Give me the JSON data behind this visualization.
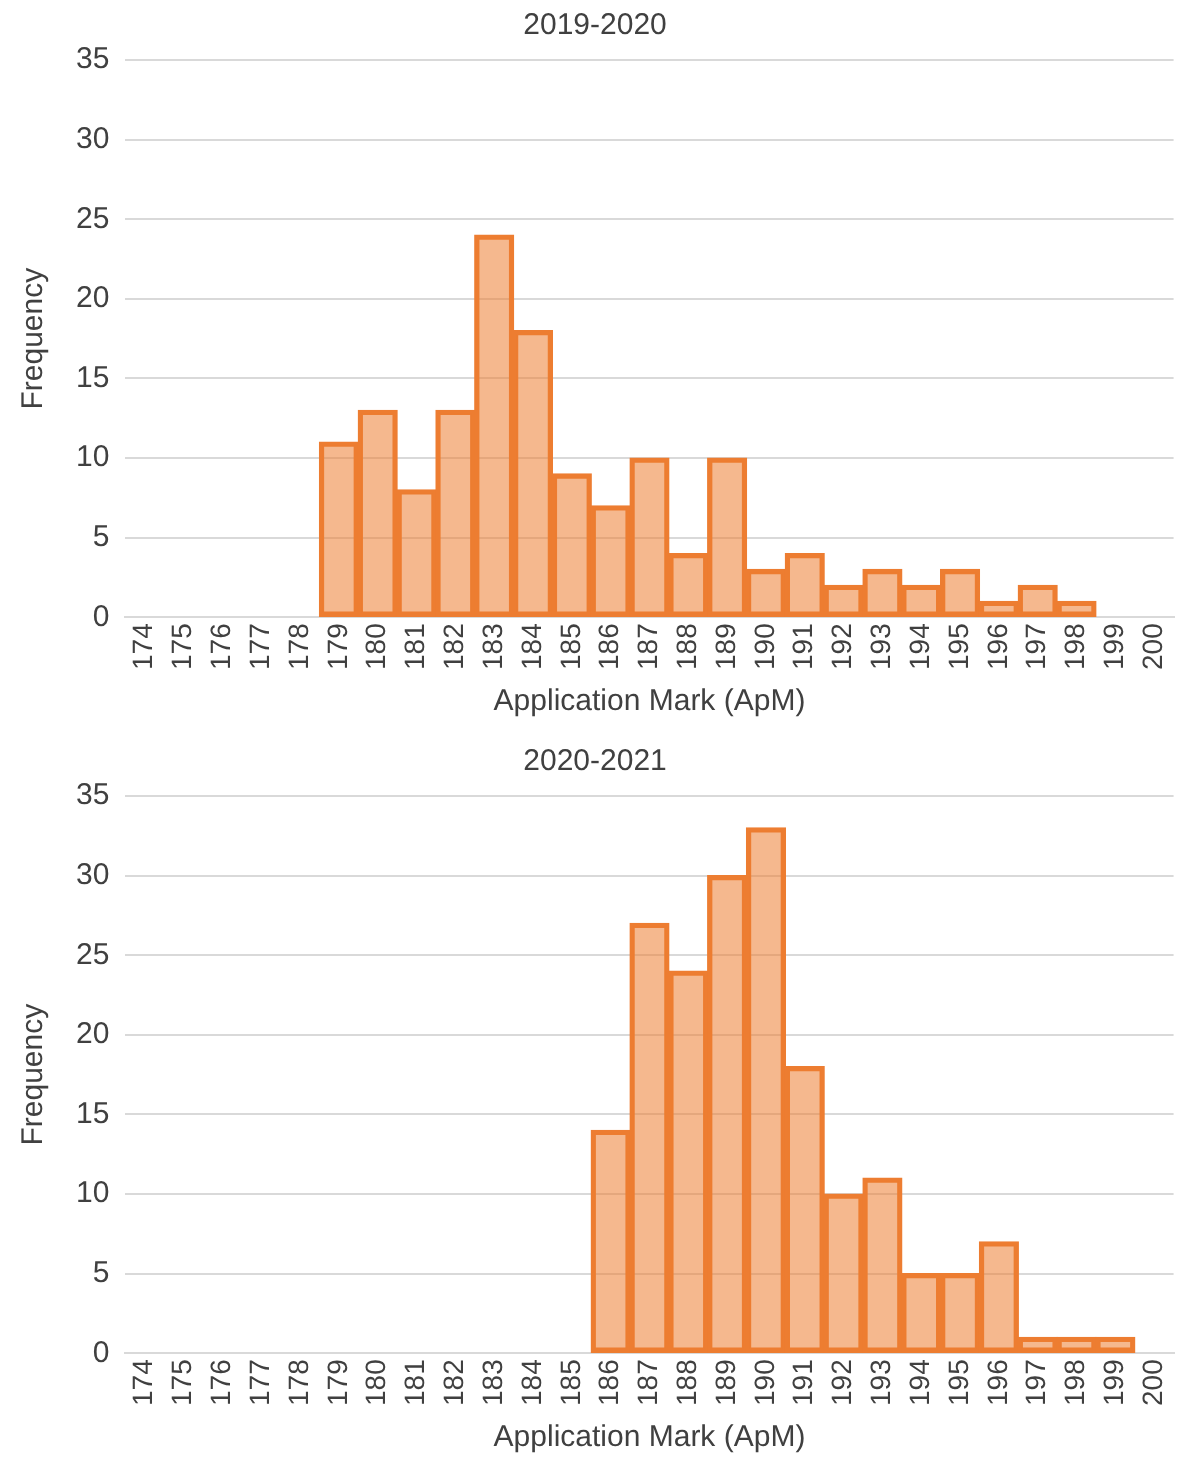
{
  "chart_data": [
    {
      "type": "bar",
      "title": "2019-2020",
      "xlabel": "Application Mark (ApM)",
      "ylabel": "Frequency",
      "categories": [
        "174",
        "175",
        "176",
        "177",
        "178",
        "179",
        "180",
        "181",
        "182",
        "183",
        "184",
        "185",
        "186",
        "187",
        "188",
        "189",
        "190",
        "191",
        "192",
        "193",
        "194",
        "195",
        "196",
        "197",
        "198",
        "199",
        "200"
      ],
      "values": [
        0,
        0,
        0,
        0,
        0,
        11,
        13,
        8,
        13,
        24,
        18,
        9,
        7,
        10,
        4,
        10,
        3,
        4,
        2,
        3,
        2,
        3,
        1,
        2,
        1,
        0,
        0
      ],
      "color": "#ed7d31",
      "ylim": [
        0,
        35
      ],
      "yticks": [
        0,
        5,
        10,
        15,
        20,
        25,
        30,
        35
      ],
      "grid": "y",
      "legend": false
    },
    {
      "type": "bar",
      "title": "2020-2021",
      "xlabel": "Application Mark (ApM)",
      "ylabel": "Frequency",
      "categories": [
        "174",
        "175",
        "176",
        "177",
        "178",
        "179",
        "180",
        "181",
        "182",
        "183",
        "184",
        "185",
        "186",
        "187",
        "188",
        "189",
        "190",
        "191",
        "192",
        "193",
        "194",
        "195",
        "196",
        "197",
        "198",
        "199",
        "200"
      ],
      "values": [
        0,
        0,
        0,
        0,
        0,
        0,
        0,
        0,
        0,
        0,
        0,
        0,
        14,
        27,
        24,
        30,
        33,
        18,
        10,
        11,
        5,
        5,
        7,
        1,
        1,
        1,
        0
      ],
      "color": "#ed7d31",
      "ylim": [
        0,
        35
      ],
      "yticks": [
        0,
        5,
        10,
        15,
        20,
        25,
        30,
        35
      ],
      "grid": "y",
      "legend": false
    }
  ]
}
